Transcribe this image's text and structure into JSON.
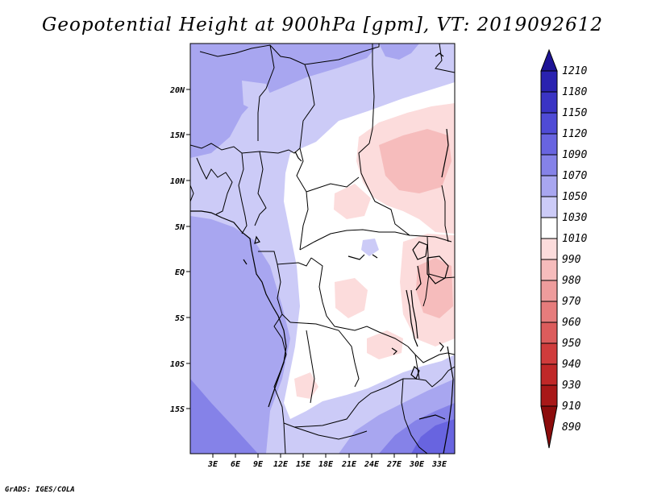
{
  "title": "Geopotential Height at 900hPa [gpm], VT: 2019092612",
  "footer": "GrADS: IGES/COLA",
  "map": {
    "lat_labels": [
      "20N",
      "15N",
      "10N",
      "5N",
      "EQ",
      "5S",
      "10S",
      "15S"
    ],
    "lon_labels": [
      "3E",
      "6E",
      "9E",
      "12E",
      "15E",
      "18E",
      "21E",
      "24E",
      "27E",
      "30E",
      "33E"
    ]
  },
  "colorbar": {
    "levels": [
      "1210",
      "1180",
      "1150",
      "1120",
      "1090",
      "1070",
      "1050",
      "1030",
      "1010",
      "990",
      "980",
      "970",
      "960",
      "950",
      "940",
      "930",
      "910",
      "890"
    ],
    "colors": {
      "above_1180": "#1e1496",
      "1150_1180": "#2a22b0",
      "1120_1150": "#3a34c4",
      "1090_1120": "#4f4bd6",
      "1070_1090": "#6864e0",
      "1050_1070": "#8582e8",
      "1030_1050": "#a8a6f0",
      "1010_1030": "#cccbf7",
      "990_1010": "#ffffff",
      "980_990": "#fcdcdc",
      "970_980": "#f6bcbc",
      "960_970": "#ee9c9c",
      "950_960": "#e67c7c",
      "940_950": "#dc5c5c",
      "930_940": "#d03c3c",
      "910_930": "#c02828",
      "890_910": "#a81818",
      "below_890": "#8c0c0c"
    }
  }
}
